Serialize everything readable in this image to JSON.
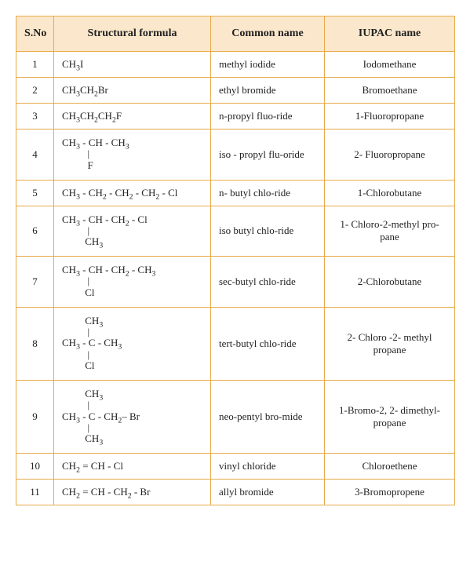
{
  "table": {
    "columns": [
      "S.No",
      "Structural formula",
      "Common name",
      "IUPAC name"
    ],
    "column_keys": [
      "sno",
      "struct",
      "common",
      "iupac"
    ],
    "header_bg": "#fbe8cc",
    "border_color": "#e8a94a",
    "header_fontsize": 14,
    "cell_fontsize": 13,
    "rows": [
      {
        "sno": "1",
        "struct_html": "CH<sub>3</sub>I",
        "common": "methyl iodide",
        "iupac": "Iodomethane",
        "taller": false
      },
      {
        "sno": "2",
        "struct_html": "CH<sub>3</sub>CH<sub>2</sub>Br",
        "common": "ethyl bromide",
        "iupac": "Bromoethane",
        "taller": false
      },
      {
        "sno": "3",
        "struct_html": "CH<sub>3</sub>CH<sub>2</sub>CH<sub>2</sub>F",
        "common": "n-propyl fluo-ride",
        "iupac": "1-Fluoropropane",
        "taller": false
      },
      {
        "sno": "4",
        "struct_html": "<span class='row'>CH<sub>3</sub> - CH - CH<sub>3</sub></span><span class='row'>&nbsp;&nbsp;&nbsp;&nbsp;&nbsp;&nbsp;&nbsp;&nbsp;&nbsp;&nbsp;|</span><span class='row'>&nbsp;&nbsp;&nbsp;&nbsp;&nbsp;&nbsp;&nbsp;&nbsp;&nbsp;&nbsp;F</span>",
        "common": "iso - propyl flu-oride",
        "iupac": "2- Fluoropropane",
        "taller": true
      },
      {
        "sno": "5",
        "struct_html": "CH<sub>3</sub> - CH<sub>2</sub> - CH<sub>2</sub> - CH<sub>2</sub> - Cl",
        "common": "n- butyl chlo-ride",
        "iupac": "1-Chlorobutane",
        "taller": false
      },
      {
        "sno": "6",
        "struct_html": "<span class='row'>CH<sub>3</sub> - CH - CH<sub>2</sub> - Cl</span><span class='row'>&nbsp;&nbsp;&nbsp;&nbsp;&nbsp;&nbsp;&nbsp;&nbsp;&nbsp;&nbsp;|</span><span class='row'>&nbsp;&nbsp;&nbsp;&nbsp;&nbsp;&nbsp;&nbsp;&nbsp;&nbsp;CH<sub>3</sub></span>",
        "common": "iso butyl chlo-ride",
        "iupac": "1- Chloro-2-methyl pro-pane",
        "taller": true
      },
      {
        "sno": "7",
        "struct_html": "<span class='row'>CH<sub>3</sub> - CH - CH<sub>2</sub> - CH<sub>3</sub></span><span class='row'>&nbsp;&nbsp;&nbsp;&nbsp;&nbsp;&nbsp;&nbsp;&nbsp;&nbsp;&nbsp;|</span><span class='row'>&nbsp;&nbsp;&nbsp;&nbsp;&nbsp;&nbsp;&nbsp;&nbsp;&nbsp;Cl</span>",
        "common": "sec-butyl chlo-ride",
        "iupac": "2-Chlorobutane",
        "taller": true
      },
      {
        "sno": "8",
        "struct_html": "<span class='row'>&nbsp;&nbsp;&nbsp;&nbsp;&nbsp;&nbsp;&nbsp;&nbsp;&nbsp;CH<sub>3</sub></span><span class='row'>&nbsp;&nbsp;&nbsp;&nbsp;&nbsp;&nbsp;&nbsp;&nbsp;&nbsp;&nbsp;|</span><span class='row'>CH<sub>3</sub> - C - CH<sub>3</sub></span><span class='row'>&nbsp;&nbsp;&nbsp;&nbsp;&nbsp;&nbsp;&nbsp;&nbsp;&nbsp;&nbsp;|</span><span class='row'>&nbsp;&nbsp;&nbsp;&nbsp;&nbsp;&nbsp;&nbsp;&nbsp;&nbsp;Cl</span>",
        "common": "tert-butyl chlo-ride",
        "iupac": "2- Chloro -2- methyl propane",
        "taller": true
      },
      {
        "sno": "9",
        "struct_html": "<span class='row'>&nbsp;&nbsp;&nbsp;&nbsp;&nbsp;&nbsp;&nbsp;&nbsp;&nbsp;CH<sub>3</sub></span><span class='row'>&nbsp;&nbsp;&nbsp;&nbsp;&nbsp;&nbsp;&nbsp;&nbsp;&nbsp;&nbsp;|</span><span class='row'>CH<sub>3</sub> - C - CH<sub>2</sub>&#8211; Br</span><span class='row'>&nbsp;&nbsp;&nbsp;&nbsp;&nbsp;&nbsp;&nbsp;&nbsp;&nbsp;&nbsp;|</span><span class='row'>&nbsp;&nbsp;&nbsp;&nbsp;&nbsp;&nbsp;&nbsp;&nbsp;&nbsp;CH<sub>3</sub></span>",
        "common": "neo-pentyl bro-mide",
        "iupac": "1-Bromo-2, 2- dimethyl-propane",
        "taller": true
      },
      {
        "sno": "10",
        "struct_html": "CH<sub>2</sub> = CH - Cl",
        "common": "vinyl chloride",
        "iupac": "Chloroethene",
        "taller": false
      },
      {
        "sno": "11",
        "struct_html": "CH<sub>2</sub> = CH - CH<sub>2</sub> - Br",
        "common": "allyl bromide",
        "iupac": "3-Bromopropene",
        "taller": false
      }
    ]
  }
}
